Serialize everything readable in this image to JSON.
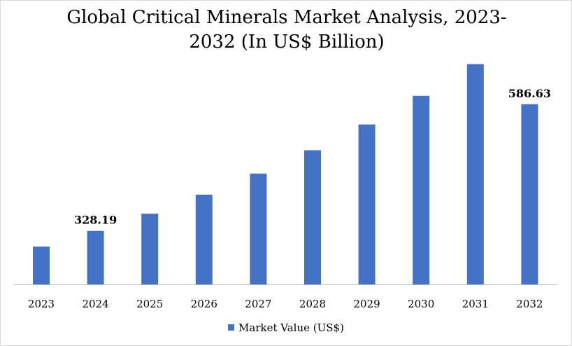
{
  "chart_data": {
    "type": "bar",
    "title": "Global Critical Minerals Market Analysis, 2023-2032 (In US$ Billion)",
    "title_lines": [
      "Global Critical Minerals Market Analysis, 2023-",
      "2032 (In US$ Billion)"
    ],
    "categories": [
      "2023",
      "2024",
      "2025",
      "2026",
      "2027",
      "2028",
      "2029",
      "2030",
      "2031",
      "2032"
    ],
    "series": [
      {
        "name": "Market Value (US$)",
        "color": "#4472c4",
        "values": [
          296.4,
          328.19,
          363.4,
          402.3,
          445.2,
          492.8,
          545.4,
          603.9,
          668.6,
          586.63
        ]
      }
    ],
    "data_labels": [
      {
        "category": "2024",
        "text": "328.19"
      },
      {
        "category": "2032",
        "text": "586.63"
      }
    ],
    "xlabel": "",
    "ylabel": "",
    "grid": false,
    "legend_position": "bottom"
  }
}
